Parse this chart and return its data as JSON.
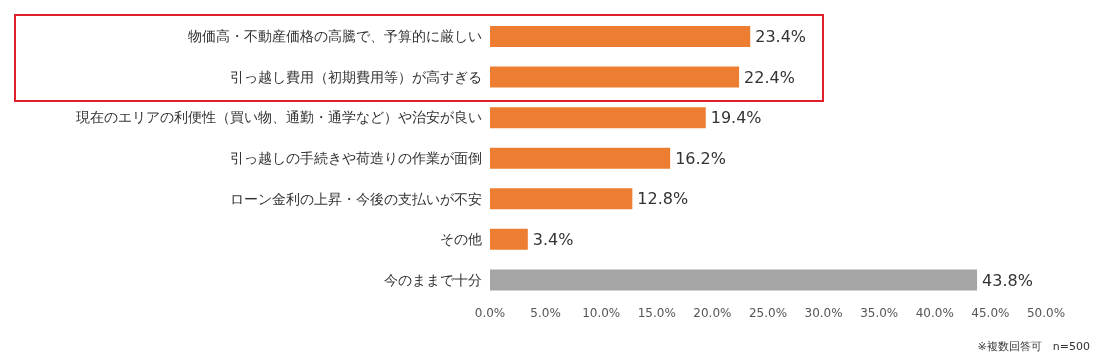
{
  "chart_data": {
    "type": "bar",
    "orientation": "horizontal",
    "categories": [
      "物価高・不動産価格の高騰で、予算的に厳しい",
      "引っ越し費用（初期費用等）が高すぎる",
      "現在のエリアの利便性（買い物、通勤・通学など）や治安が良い",
      "引っ越しの手続きや荷造りの作業が面倒",
      "ローン金利の上昇・今後の支払いが不安",
      "その他",
      "今のままで十分"
    ],
    "values": [
      23.4,
      22.4,
      19.4,
      16.2,
      12.8,
      3.4,
      43.8
    ],
    "colors": [
      "#ed7d31",
      "#ed7d31",
      "#ed7d31",
      "#ed7d31",
      "#ed7d31",
      "#ed7d31",
      "#a5a5a5"
    ],
    "value_labels": [
      "23.4%",
      "22.4%",
      "19.4%",
      "16.2%",
      "12.8%",
      "3.4%",
      "43.8%"
    ],
    "xlim": [
      0,
      50
    ],
    "xticks": [
      {
        "value": 0,
        "label": "0.0%"
      },
      {
        "value": 5,
        "label": "5.0%"
      },
      {
        "value": 10,
        "label": "10.0%"
      },
      {
        "value": 15,
        "label": "15.0%"
      },
      {
        "value": 20,
        "label": "20.0%"
      },
      {
        "value": 25,
        "label": "25.0%"
      },
      {
        "value": 30,
        "label": "30.0%"
      },
      {
        "value": 35,
        "label": "35.0%"
      },
      {
        "value": 40,
        "label": "40.0%"
      },
      {
        "value": 45,
        "label": "45.0%"
      },
      {
        "value": 50,
        "label": "50.0%"
      }
    ],
    "grid": false,
    "legend": false,
    "annotations": [
      "※複数回答可　n=500"
    ]
  }
}
